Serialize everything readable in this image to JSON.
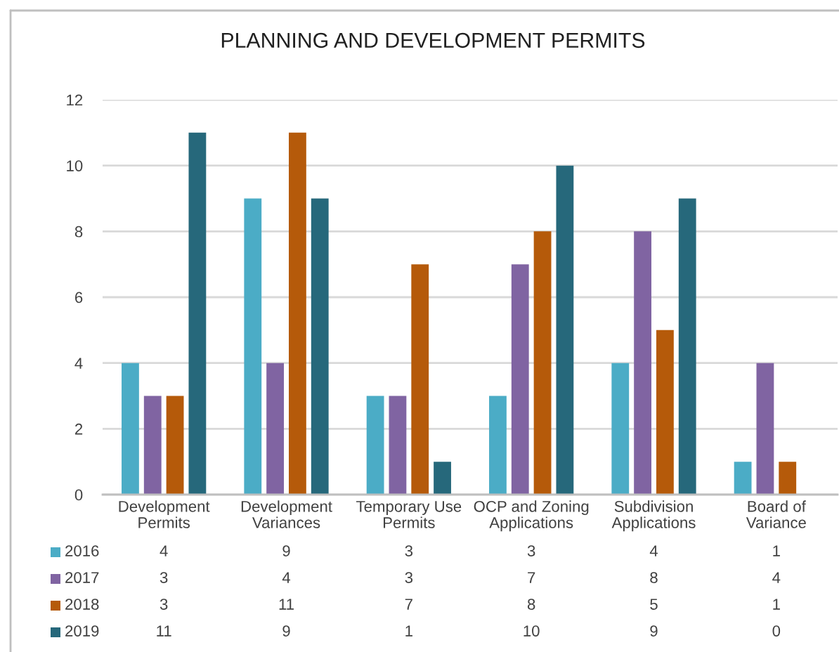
{
  "chart_data": {
    "type": "bar",
    "title": "PLANNING AND DEVELOPMENT PERMITS",
    "categories": [
      "Development\nPermits",
      "Development\nVariances",
      "Temporary Use\nPermits",
      "OCP and Zoning\nApplications",
      "Subdivision\nApplications",
      "Board of\nVariance"
    ],
    "series": [
      {
        "name": "2016",
        "color": "#4bacc6",
        "values": [
          4,
          9,
          3,
          3,
          4,
          1
        ]
      },
      {
        "name": "2017",
        "color": "#8064a2",
        "values": [
          3,
          4,
          3,
          7,
          8,
          4
        ]
      },
      {
        "name": "2018",
        "color": "#b55a0a",
        "values": [
          3,
          11,
          7,
          8,
          5,
          1
        ]
      },
      {
        "name": "2019",
        "color": "#26687b",
        "values": [
          11,
          9,
          1,
          10,
          9,
          0
        ]
      }
    ],
    "ylim": [
      0,
      12
    ],
    "yticks": [
      0,
      2,
      4,
      6,
      8,
      10,
      12
    ],
    "grid": "y",
    "legend": "bottom",
    "data_labels": true
  }
}
